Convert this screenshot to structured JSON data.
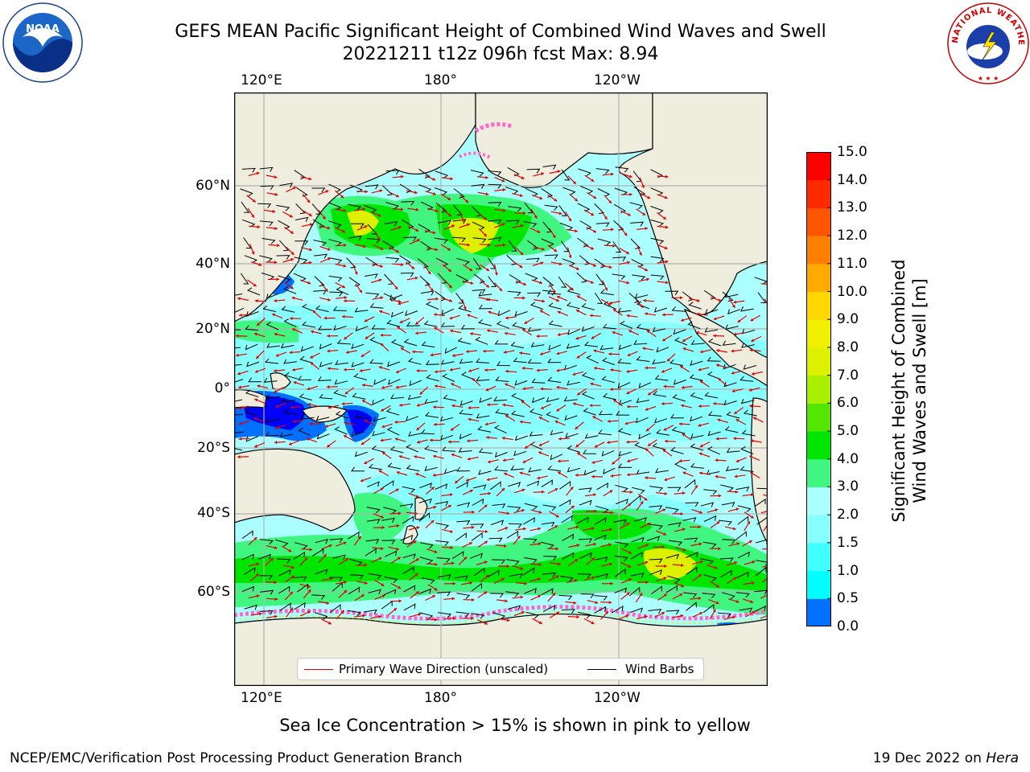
{
  "header": {
    "title_line1": "GEFS MEAN Pacific Significant Height of Combined Wind Waves and Swell",
    "title_line2": "20221211 t12z 096h fcst   Max: 8.94"
  },
  "map": {
    "lon_labels_top": [
      "120°E",
      "180°",
      "120°W"
    ],
    "lon_labels_bottom": [
      "120°E",
      "180°",
      "120°W"
    ],
    "lat_labels": [
      "60°N",
      "40°N",
      "20°N",
      "0°",
      "20°S",
      "40°S",
      "60°S"
    ],
    "land_color": "#efedde",
    "grid_color": "#b0b0b0"
  },
  "legend": {
    "wave_label": "Primary Wave Direction (unscaled)",
    "barb_label": "Wind Barbs",
    "wave_color": "#e00000",
    "barb_color": "#000000"
  },
  "colorbar": {
    "label_line1": "Significant Height of Combined",
    "label_line2": "Wind Waves and Swell [m]",
    "ticks": [
      "15.0",
      "14.0",
      "13.0",
      "12.0",
      "11.0",
      "10.0",
      "9.0",
      "8.0",
      "7.0",
      "6.0",
      "5.0",
      "4.0",
      "3.0",
      "2.0",
      "1.5",
      "1.0",
      "0.5",
      "0.0"
    ],
    "colors_bottom_to_top": [
      "#0000ff",
      "#0070ff",
      "#00ffff",
      "#40ffff",
      "#88ffff",
      "#acffff",
      "#40f580",
      "#00e600",
      "#55e600",
      "#aaee00",
      "#dcf000",
      "#f0f000",
      "#ffd700",
      "#ffaa00",
      "#ff8000",
      "#ff5500",
      "#ff2a00",
      "#ff0000"
    ]
  },
  "footer": {
    "subtitle": "Sea Ice Concentration > 15% is shown in pink to yellow",
    "left": "NCEP/EMC/Verification Post Processing Product Generation Branch",
    "right_date": "19 Dec 2022 on",
    "right_host": "Hera"
  },
  "logos": {
    "noaa_text": "NOAA",
    "nws_text": "NATIONAL WEATHER SERVICE"
  }
}
